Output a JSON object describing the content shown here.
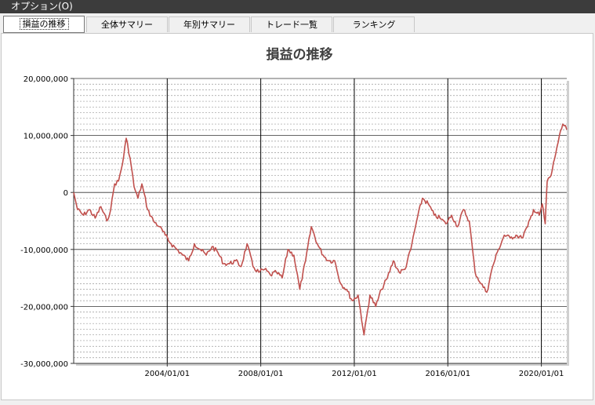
{
  "window": {
    "menu_label": "オプション(O)"
  },
  "tabs": [
    {
      "label": "損益の推移",
      "active": true
    },
    {
      "label": "全体サマリー",
      "active": false
    },
    {
      "label": "年別サマリー",
      "active": false
    },
    {
      "label": "トレード一覧",
      "active": false
    },
    {
      "label": "ランキング",
      "active": false
    }
  ],
  "colors": {
    "series": "#c0504d",
    "menubar": "#3c3c3c"
  },
  "chart_data": {
    "type": "line",
    "title": "損益の推移",
    "xlabel": "",
    "ylabel": "",
    "ylim": [
      -30000000,
      20000000
    ],
    "y_ticks": [
      "20,000,000",
      "10,000,000",
      "0",
      "-10,000,000",
      "-20,000,000",
      "-30,000,000"
    ],
    "y_tick_values": [
      20000000,
      10000000,
      0,
      -10000000,
      -20000000,
      -30000000
    ],
    "x_ticks": [
      "2004/01/01",
      "2008/01/01",
      "2012/01/01",
      "2016/01/01",
      "2020/01/01"
    ],
    "xlim": [
      "2000/01/01",
      "2021/02/01"
    ],
    "grid": true,
    "legend": "none",
    "series": [
      {
        "x": [
          "2000/01/01",
          "2000/03/01",
          "2000/06/01",
          "2000/09/01",
          "2000/12/01",
          "2001/03/01",
          "2001/06/01",
          "2001/08/01",
          "2001/10/01",
          "2001/12/01",
          "2002/02/01",
          "2002/04/01",
          "2002/06/01",
          "2002/08/01",
          "2002/10/01",
          "2002/12/01",
          "2003/03/01",
          "2003/06/01",
          "2003/09/01",
          "2003/12/01",
          "2004/03/01",
          "2004/06/01",
          "2004/09/01",
          "2004/12/01",
          "2005/03/01",
          "2005/06/01",
          "2005/09/01",
          "2005/12/01",
          "2006/03/01",
          "2006/06/01",
          "2006/09/01",
          "2006/12/01",
          "2007/03/01",
          "2007/06/01",
          "2007/09/01",
          "2007/12/01",
          "2008/03/01",
          "2008/06/01",
          "2008/09/01",
          "2008/12/01",
          "2009/03/01",
          "2009/06/01",
          "2009/09/01",
          "2009/12/01",
          "2010/03/01",
          "2010/06/01",
          "2010/09/01",
          "2010/12/01",
          "2011/03/01",
          "2011/06/01",
          "2011/09/01",
          "2011/12/01",
          "2012/03/01",
          "2012/06/01",
          "2012/09/01",
          "2012/12/01",
          "2013/03/01",
          "2013/06/01",
          "2013/09/01",
          "2013/12/01",
          "2014/03/01",
          "2014/06/01",
          "2014/09/01",
          "2014/12/01",
          "2015/03/01",
          "2015/06/01",
          "2015/09/01",
          "2015/12/01",
          "2016/03/01",
          "2016/06/01",
          "2016/09/01",
          "2016/12/01",
          "2017/03/01",
          "2017/06/01",
          "2017/09/01",
          "2017/12/01",
          "2018/03/01",
          "2018/06/01",
          "2018/09/01",
          "2018/12/01",
          "2019/03/01",
          "2019/06/01",
          "2019/09/01",
          "2019/12/01",
          "2020/01/15",
          "2020/03/01",
          "2020/04/01",
          "2020/06/01",
          "2020/09/01",
          "2020/12/01",
          "2021/02/01"
        ],
        "values": [
          0,
          -3000000,
          -4000000,
          -3000000,
          -4500000,
          -2500000,
          -5000000,
          -3000000,
          1500000,
          2000000,
          5000000,
          9500000,
          6000000,
          1000000,
          -1000000,
          1500000,
          -3000000,
          -5000000,
          -6000000,
          -7500000,
          -9000000,
          -10000000,
          -11000000,
          -12000000,
          -9000000,
          -10000000,
          -11000000,
          -9500000,
          -10500000,
          -12500000,
          -12500000,
          -12000000,
          -13000000,
          -9000000,
          -13000000,
          -14000000,
          -13500000,
          -14500000,
          -14000000,
          -15000000,
          -10000000,
          -11000000,
          -17000000,
          -12000000,
          -6000000,
          -9000000,
          -11000000,
          -12000000,
          -12000000,
          -16000000,
          -17000000,
          -19000000,
          -18000000,
          -25000000,
          -18000000,
          -20000000,
          -17000000,
          -15000000,
          -12000000,
          -14000000,
          -13500000,
          -10000000,
          -5000000,
          -1000000,
          -2000000,
          -4000000,
          -4500000,
          -5500000,
          -4000000,
          -6000000,
          -3000000,
          -5000000,
          -14000000,
          -16000000,
          -17500000,
          -13000000,
          -10000000,
          -7500000,
          -8000000,
          -7500000,
          -8000000,
          -6000000,
          -3000000,
          -4000000,
          -2000000,
          -5500000,
          2000000,
          3000000,
          8000000,
          12000000,
          11000000
        ]
      }
    ]
  }
}
